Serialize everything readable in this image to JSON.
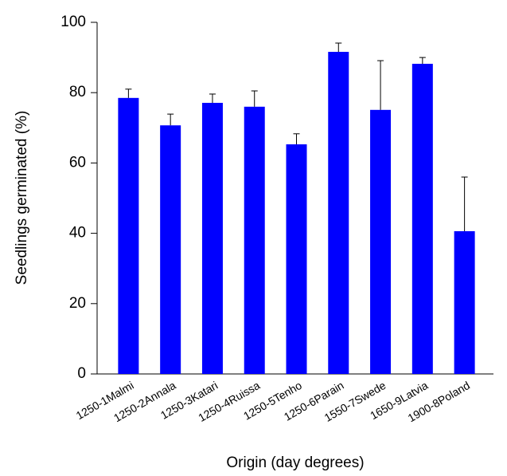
{
  "chart_data": {
    "type": "bar",
    "xlabel": "Origin (day degrees)",
    "ylabel": "Seedlings germinated (%)",
    "categories": [
      "1250-1Malmi",
      "1250-2Annala",
      "1250-3Katari",
      "1250-4Ruissa",
      "1250-5Tenho",
      "1250-6Parain",
      "1550-7Swede",
      "1650-9Latvia",
      "1900-8Poland"
    ],
    "values": [
      78.5,
      70.7,
      77.1,
      76.0,
      65.3,
      91.6,
      75.1,
      88.2,
      40.6
    ],
    "errors": [
      2.5,
      3.2,
      2.5,
      4.5,
      3.0,
      2.5,
      14.0,
      1.8,
      15.4
    ],
    "color": "#0000ff",
    "ylim": [
      0,
      100
    ],
    "yticks": [
      0,
      20,
      40,
      60,
      80,
      100
    ],
    "grid": false
  }
}
